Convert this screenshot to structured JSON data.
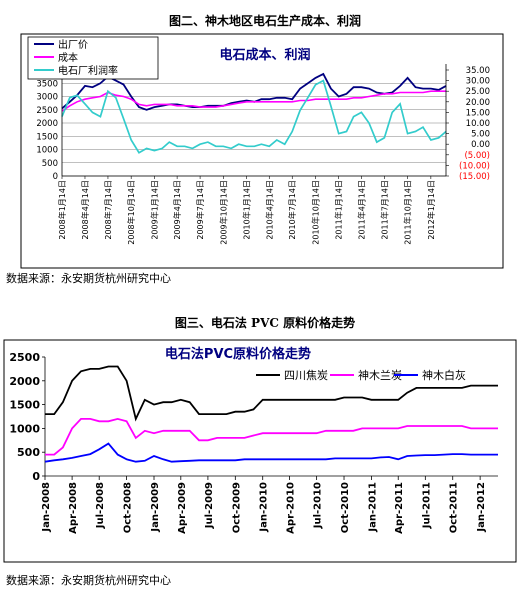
{
  "figure1": {
    "caption": "图二、神木地区电石生产成本、利润",
    "source": "数据来源：永安期货杭州研究中心"
  },
  "figure2": {
    "caption": "图三、电石法 PVC 原料价格走势",
    "source": "数据来源：永安期货杭州研究中心"
  },
  "chart_data": [
    {
      "type": "line",
      "title": "电石成本、利润",
      "grid": true,
      "legend_position": "top-left",
      "x_start": "2008-01-14",
      "x_end": "2012-03-14",
      "x_ticks": [
        "2008年1月14日",
        "2008年4月14日",
        "2008年7月14日",
        "2008年10月14日",
        "2009年1月14日",
        "2009年4月14日",
        "2009年7月14日",
        "2009年10月14日",
        "2010年1月14日",
        "2010年4月14日",
        "2010年7月14日",
        "2010年10月14日",
        "2011年1月14日",
        "2011年4月14日",
        "2011年7月14日",
        "2011年10月14日",
        "2012年1月14日"
      ],
      "y_left": {
        "min": 0,
        "max": 4000,
        "step": 500,
        "ticks": [
          "0",
          "500",
          "1000",
          "1500",
          "2000",
          "2500",
          "3000",
          "3500"
        ]
      },
      "y_right": {
        "min": -15,
        "max": 35,
        "ticks": [
          "35.00",
          "30.00",
          "25.00",
          "20.00",
          "15.00",
          "10.00",
          "5.00",
          "0.00",
          "(5.00)",
          "(10.00)",
          "(15.00)"
        ],
        "negative_color": "#ff0000"
      },
      "series": [
        {
          "name": "出厂价",
          "axis": "left",
          "color": "#000080",
          "x": [
            "2008-01-14",
            "2008-02-14",
            "2008-03-14",
            "2008-04-14",
            "2008-05-14",
            "2008-06-14",
            "2008-07-14",
            "2008-08-14",
            "2008-09-14",
            "2008-10-14",
            "2008-11-14",
            "2008-12-14",
            "2009-01-14",
            "2009-02-14",
            "2009-03-14",
            "2009-04-14",
            "2009-05-14",
            "2009-06-14",
            "2009-07-14",
            "2009-08-14",
            "2009-09-14",
            "2009-10-14",
            "2009-11-14",
            "2009-12-14",
            "2010-01-14",
            "2010-02-14",
            "2010-03-14",
            "2010-04-14",
            "2010-05-14",
            "2010-06-14",
            "2010-07-14",
            "2010-08-14",
            "2010-09-14",
            "2010-10-14",
            "2010-11-14",
            "2010-12-14",
            "2011-01-14",
            "2011-02-14",
            "2011-03-14",
            "2011-04-14",
            "2011-05-14",
            "2011-06-14",
            "2011-07-14",
            "2011-08-14",
            "2011-09-14",
            "2011-10-14",
            "2011-11-14",
            "2011-12-14",
            "2012-01-14",
            "2012-02-14",
            "2012-03-14"
          ],
          "values": [
            2550,
            2800,
            3050,
            3400,
            3350,
            3500,
            3750,
            3600,
            3450,
            3000,
            2600,
            2500,
            2600,
            2650,
            2700,
            2700,
            2650,
            2600,
            2600,
            2650,
            2650,
            2650,
            2750,
            2800,
            2850,
            2800,
            2900,
            2900,
            2950,
            2950,
            2900,
            3300,
            3500,
            3700,
            3850,
            3300,
            3000,
            3100,
            3350,
            3350,
            3300,
            3150,
            3100,
            3150,
            3400,
            3700,
            3350,
            3300,
            3300,
            3250,
            3400
          ]
        },
        {
          "name": "成本",
          "axis": "left",
          "color": "#ff00ff",
          "x": [
            "2008-01-14",
            "2008-02-14",
            "2008-03-14",
            "2008-04-14",
            "2008-05-14",
            "2008-06-14",
            "2008-07-14",
            "2008-08-14",
            "2008-09-14",
            "2008-10-14",
            "2008-11-14",
            "2008-12-14",
            "2009-01-14",
            "2009-02-14",
            "2009-03-14",
            "2009-04-14",
            "2009-05-14",
            "2009-06-14",
            "2009-07-14",
            "2009-08-14",
            "2009-09-14",
            "2009-10-14",
            "2009-11-14",
            "2009-12-14",
            "2010-01-14",
            "2010-02-14",
            "2010-03-14",
            "2010-04-14",
            "2010-05-14",
            "2010-06-14",
            "2010-07-14",
            "2010-08-14",
            "2010-09-14",
            "2010-10-14",
            "2010-11-14",
            "2010-12-14",
            "2011-01-14",
            "2011-02-14",
            "2011-03-14",
            "2011-04-14",
            "2011-05-14",
            "2011-06-14",
            "2011-07-14",
            "2011-08-14",
            "2011-09-14",
            "2011-10-14",
            "2011-11-14",
            "2011-12-14",
            "2012-01-14",
            "2012-02-14",
            "2012-03-14"
          ],
          "values": [
            2450,
            2650,
            2800,
            2900,
            2950,
            3000,
            3150,
            3050,
            3000,
            2900,
            2700,
            2650,
            2700,
            2700,
            2700,
            2650,
            2650,
            2650,
            2600,
            2600,
            2600,
            2650,
            2700,
            2750,
            2800,
            2800,
            2800,
            2800,
            2800,
            2800,
            2800,
            2850,
            2850,
            2900,
            2900,
            2900,
            2900,
            2900,
            2950,
            2950,
            3000,
            3050,
            3100,
            3100,
            3150,
            3150,
            3150,
            3150,
            3200,
            3200,
            3200
          ]
        },
        {
          "name": "电石厂利润率",
          "axis": "right",
          "color": "#33cccc",
          "x": [
            "2008-01-14",
            "2008-02-14",
            "2008-03-14",
            "2008-04-14",
            "2008-05-14",
            "2008-06-14",
            "2008-07-14",
            "2008-08-14",
            "2008-09-14",
            "2008-10-14",
            "2008-11-14",
            "2008-12-14",
            "2009-01-14",
            "2009-02-14",
            "2009-03-14",
            "2009-04-14",
            "2009-05-14",
            "2009-06-14",
            "2009-07-14",
            "2009-08-14",
            "2009-09-14",
            "2009-10-14",
            "2009-11-14",
            "2009-12-14",
            "2010-01-14",
            "2010-02-14",
            "2010-03-14",
            "2010-04-14",
            "2010-05-14",
            "2010-06-14",
            "2010-07-14",
            "2010-08-14",
            "2010-09-14",
            "2010-10-14",
            "2010-11-14",
            "2010-12-14",
            "2011-01-14",
            "2011-02-14",
            "2011-03-14",
            "2011-04-14",
            "2011-05-14",
            "2011-06-14",
            "2011-07-14",
            "2011-08-14",
            "2011-09-14",
            "2011-10-14",
            "2011-11-14",
            "2011-12-14",
            "2012-01-14",
            "2012-02-14",
            "2012-03-14"
          ],
          "values": [
            13,
            22,
            23,
            19,
            15,
            13,
            25,
            22,
            12,
            2,
            -4,
            -2,
            -3,
            -2,
            1,
            -1,
            -1,
            -2,
            0,
            1,
            -1,
            -1,
            -2,
            0,
            -1,
            -1,
            0,
            -1,
            2,
            0,
            6,
            16,
            22,
            28,
            30,
            18,
            5,
            6,
            13,
            15,
            10,
            1,
            3,
            15,
            19,
            5,
            6,
            8,
            2,
            3,
            6
          ]
        }
      ]
    },
    {
      "type": "line",
      "title": "电石法PVC原料价格走势",
      "grid": false,
      "legend_position": "top-right",
      "x_start": "2008-01",
      "x_end": "2012-03",
      "x_ticks": [
        "Jan-2008",
        "Apr-2008",
        "Jul-2008",
        "Oct-2008",
        "Jan-2009",
        "Apr-2009",
        "Jul-2009",
        "Oct-2009",
        "Jan-2010",
        "Apr-2010",
        "Jul-2010",
        "Oct-2010",
        "Jan-2011",
        "Apr-2011",
        "Jul-2011",
        "Oct-2011",
        "Jan-2012"
      ],
      "y_axis": {
        "min": 0,
        "max": 2500,
        "step": 500,
        "ticks": [
          "0",
          "500",
          "1000",
          "1500",
          "2000",
          "2500"
        ]
      },
      "series": [
        {
          "name": "四川焦炭",
          "color": "#000000",
          "x": [
            "2008-01",
            "2008-02",
            "2008-03",
            "2008-04",
            "2008-05",
            "2008-06",
            "2008-07",
            "2008-08",
            "2008-09",
            "2008-10",
            "2008-11",
            "2008-12",
            "2009-01",
            "2009-02",
            "2009-03",
            "2009-04",
            "2009-05",
            "2009-06",
            "2009-07",
            "2009-08",
            "2009-09",
            "2009-10",
            "2009-11",
            "2009-12",
            "2010-01",
            "2010-02",
            "2010-03",
            "2010-04",
            "2010-05",
            "2010-06",
            "2010-07",
            "2010-08",
            "2010-09",
            "2010-10",
            "2010-11",
            "2010-12",
            "2011-01",
            "2011-02",
            "2011-03",
            "2011-04",
            "2011-05",
            "2011-06",
            "2011-07",
            "2011-08",
            "2011-09",
            "2011-10",
            "2011-11",
            "2011-12",
            "2012-01",
            "2012-02",
            "2012-03"
          ],
          "values": [
            1300,
            1300,
            1550,
            2000,
            2200,
            2250,
            2250,
            2300,
            2300,
            2000,
            1200,
            1600,
            1500,
            1550,
            1550,
            1600,
            1550,
            1300,
            1300,
            1300,
            1300,
            1350,
            1350,
            1400,
            1600,
            1600,
            1600,
            1600,
            1600,
            1600,
            1600,
            1600,
            1600,
            1650,
            1650,
            1650,
            1600,
            1600,
            1600,
            1600,
            1750,
            1850,
            1850,
            1850,
            1850,
            1850,
            1850,
            1900,
            1900,
            1900,
            1900
          ]
        },
        {
          "name": "神木兰炭",
          "color": "#ff00ff",
          "x": [
            "2008-01",
            "2008-02",
            "2008-03",
            "2008-04",
            "2008-05",
            "2008-06",
            "2008-07",
            "2008-08",
            "2008-09",
            "2008-10",
            "2008-11",
            "2008-12",
            "2009-01",
            "2009-02",
            "2009-03",
            "2009-04",
            "2009-05",
            "2009-06",
            "2009-07",
            "2009-08",
            "2009-09",
            "2009-10",
            "2009-11",
            "2009-12",
            "2010-01",
            "2010-02",
            "2010-03",
            "2010-04",
            "2010-05",
            "2010-06",
            "2010-07",
            "2010-08",
            "2010-09",
            "2010-10",
            "2010-11",
            "2010-12",
            "2011-01",
            "2011-02",
            "2011-03",
            "2011-04",
            "2011-05",
            "2011-06",
            "2011-07",
            "2011-08",
            "2011-09",
            "2011-10",
            "2011-11",
            "2011-12",
            "2012-01",
            "2012-02",
            "2012-03"
          ],
          "values": [
            450,
            450,
            600,
            1000,
            1200,
            1200,
            1150,
            1150,
            1200,
            1150,
            800,
            950,
            900,
            950,
            950,
            950,
            950,
            750,
            750,
            800,
            800,
            800,
            800,
            850,
            900,
            900,
            900,
            900,
            900,
            900,
            900,
            950,
            950,
            950,
            950,
            1000,
            1000,
            1000,
            1000,
            1000,
            1050,
            1050,
            1050,
            1050,
            1050,
            1050,
            1050,
            1000,
            1000,
            1000,
            1000
          ]
        },
        {
          "name": "神木白灰",
          "color": "#0000ff",
          "x": [
            "2008-01",
            "2008-02",
            "2008-03",
            "2008-04",
            "2008-05",
            "2008-06",
            "2008-07",
            "2008-08",
            "2008-09",
            "2008-10",
            "2008-11",
            "2008-12",
            "2009-01",
            "2009-02",
            "2009-03",
            "2009-04",
            "2009-05",
            "2009-06",
            "2009-07",
            "2009-08",
            "2009-09",
            "2009-10",
            "2009-11",
            "2009-12",
            "2010-01",
            "2010-02",
            "2010-03",
            "2010-04",
            "2010-05",
            "2010-06",
            "2010-07",
            "2010-08",
            "2010-09",
            "2010-10",
            "2010-11",
            "2010-12",
            "2011-01",
            "2011-02",
            "2011-03",
            "2011-04",
            "2011-05",
            "2011-06",
            "2011-07",
            "2011-08",
            "2011-09",
            "2011-10",
            "2011-11",
            "2011-12",
            "2012-01",
            "2012-02",
            "2012-03"
          ],
          "values": [
            300,
            330,
            350,
            380,
            420,
            460,
            560,
            680,
            450,
            350,
            300,
            320,
            420,
            350,
            300,
            310,
            320,
            330,
            330,
            330,
            330,
            330,
            350,
            350,
            350,
            350,
            350,
            350,
            350,
            350,
            350,
            350,
            370,
            370,
            370,
            370,
            370,
            390,
            400,
            350,
            420,
            430,
            440,
            440,
            450,
            460,
            460,
            450,
            450,
            450,
            450
          ]
        }
      ]
    }
  ]
}
